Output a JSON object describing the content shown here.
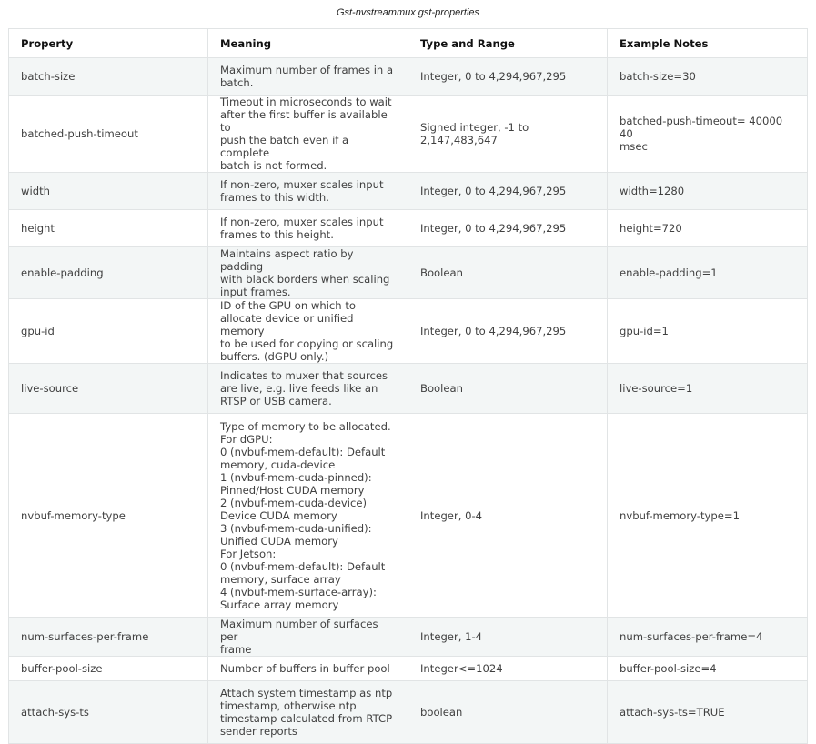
{
  "caption": "Gst-nvstreammux gst-properties",
  "headers": [
    "Property",
    "Meaning",
    "Type and Range",
    "Example Notes"
  ],
  "rows": [
    {
      "property": "batch-size",
      "meaning": "Maximum number of frames in a\nbatch.",
      "type": "Integer, 0 to 4,294,967,295",
      "example": "batch-size=30"
    },
    {
      "property": "batched-push-timeout",
      "meaning": "Timeout in microseconds to wait\nafter the first buffer is available to\npush the batch even if a complete\nbatch is not formed.",
      "type": "Signed integer, -1 to\n2,147,483,647",
      "example": "batched-push-timeout= 40000 40\nmsec"
    },
    {
      "property": "width",
      "meaning": "If non-zero, muxer scales input\nframes to this width.",
      "type": "Integer, 0 to 4,294,967,295",
      "example": "width=1280"
    },
    {
      "property": "height",
      "meaning": "If non-zero, muxer scales input\nframes to this height.",
      "type": "Integer, 0 to 4,294,967,295",
      "example": "height=720"
    },
    {
      "property": "enable-padding",
      "meaning": "Maintains aspect ratio by padding\nwith black borders when scaling\ninput frames.",
      "type": "Boolean",
      "example": "enable-padding=1"
    },
    {
      "property": "gpu-id",
      "meaning": "ID of the GPU on which to\nallocate device or unified memory\nto be used for copying or scaling\nbuffers. (dGPU only.)",
      "type": "Integer, 0 to 4,294,967,295",
      "example": "gpu-id=1"
    },
    {
      "property": "live-source",
      "meaning": "Indicates to muxer that sources\nare live, e.g. live feeds like an\nRTSP or USB camera.",
      "type": "Boolean",
      "example": "live-source=1"
    },
    {
      "property": "nvbuf-memory-type",
      "meaning": "Type of memory to be allocated.\nFor dGPU:\n0 (nvbuf-mem-default): Default\nmemory, cuda-device\n1 (nvbuf-mem-cuda-pinned):\nPinned/Host CUDA memory\n2 (nvbuf-mem-cuda-device)\nDevice CUDA memory\n3 (nvbuf-mem-cuda-unified):\nUnified CUDA memory\nFor Jetson:\n0 (nvbuf-mem-default): Default\nmemory, surface array\n4 (nvbuf-mem-surface-array):\nSurface array memory",
      "type": "Integer, 0-4",
      "example": "nvbuf-memory-type=1"
    },
    {
      "property": "num-surfaces-per-frame",
      "meaning": "Maximum number of surfaces per\nframe",
      "type": "Integer, 1-4",
      "example": "num-surfaces-per-frame=4"
    },
    {
      "property": "buffer-pool-size",
      "meaning": "Number of buffers in buffer pool",
      "type": "Integer<=1024",
      "example": "buffer-pool-size=4"
    },
    {
      "property": "attach-sys-ts",
      "meaning": "Attach system timestamp as ntp\ntimestamp, otherwise ntp\ntimestamp calculated from RTCP\nsender reports",
      "type": "boolean",
      "example": "attach-sys-ts=TRUE"
    }
  ]
}
